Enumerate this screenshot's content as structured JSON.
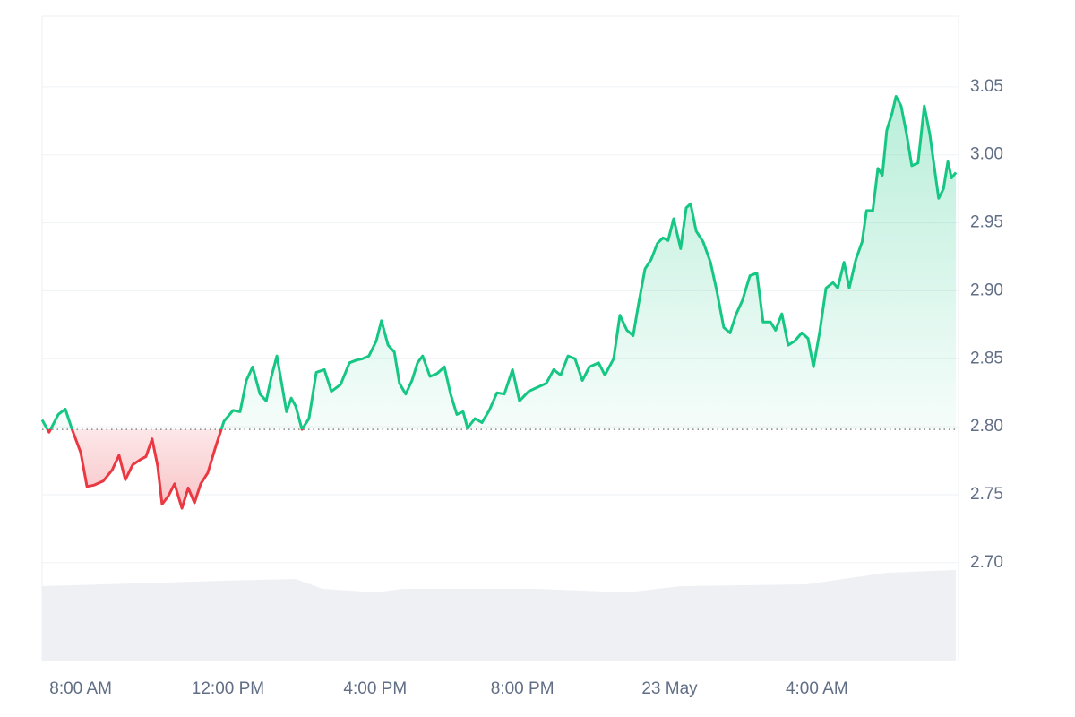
{
  "chart_data": {
    "type": "line",
    "x": [
      6.95,
      7.14,
      7.39,
      7.58,
      7.75,
      8.0,
      8.17,
      8.36,
      8.61,
      8.85,
      9.04,
      9.21,
      9.41,
      9.63,
      9.77,
      9.94,
      10.09,
      10.21,
      10.38,
      10.55,
      10.75,
      10.92,
      11.09,
      11.26,
      11.45,
      11.65,
      11.89,
      12.14,
      12.33,
      12.5,
      12.67,
      12.87,
      13.04,
      13.18,
      13.33,
      13.47,
      13.59,
      13.72,
      13.84,
      14.01,
      14.2,
      14.4,
      14.62,
      14.81,
      15.06,
      15.3,
      15.49,
      15.66,
      15.83,
      16.03,
      16.17,
      16.35,
      16.52,
      16.66,
      16.83,
      17.0,
      17.15,
      17.29,
      17.49,
      17.68,
      17.88,
      18.05,
      18.22,
      18.39,
      18.51,
      18.71,
      18.9,
      19.1,
      19.31,
      19.51,
      19.73,
      19.92,
      20.17,
      20.41,
      20.65,
      20.85,
      21.04,
      21.24,
      21.43,
      21.63,
      21.82,
      22.07,
      22.24,
      22.48,
      22.65,
      22.84,
      23.01,
      23.16,
      23.33,
      23.5,
      23.67,
      23.82,
      23.96,
      24.11,
      24.3,
      24.45,
      24.57,
      24.72,
      24.91,
      25.11,
      25.28,
      25.47,
      25.64,
      25.81,
      25.98,
      26.18,
      26.37,
      26.54,
      26.74,
      26.88,
      27.05,
      27.22,
      27.4,
      27.59,
      27.76,
      27.91,
      28.08,
      28.25,
      28.44,
      28.57,
      28.74,
      28.88,
      29.06,
      29.23,
      29.35,
      29.52,
      29.66,
      29.78,
      29.9,
      30.05,
      30.15,
      30.29,
      30.44,
      30.58,
      30.75,
      30.92,
      31.07,
      31.17,
      31.31,
      31.44,
      31.56,
      31.66,
      31.78
    ],
    "values": [
      2.805,
      2.796,
      2.809,
      2.813,
      2.799,
      2.781,
      2.756,
      2.757,
      2.76,
      2.768,
      2.779,
      2.761,
      2.772,
      2.776,
      2.778,
      2.791,
      2.771,
      2.743,
      2.749,
      2.758,
      2.74,
      2.755,
      2.744,
      2.758,
      2.766,
      2.784,
      2.804,
      2.812,
      2.811,
      2.834,
      2.844,
      2.824,
      2.819,
      2.837,
      2.852,
      2.83,
      2.811,
      2.821,
      2.815,
      2.798,
      2.806,
      2.84,
      2.842,
      2.826,
      2.831,
      2.847,
      2.849,
      2.85,
      2.852,
      2.863,
      2.878,
      2.86,
      2.855,
      2.832,
      2.824,
      2.834,
      2.847,
      2.852,
      2.837,
      2.839,
      2.844,
      2.824,
      2.809,
      2.811,
      2.799,
      2.806,
      2.803,
      2.812,
      2.825,
      2.824,
      2.842,
      2.819,
      2.826,
      2.829,
      2.832,
      2.842,
      2.838,
      2.852,
      2.85,
      2.834,
      2.844,
      2.847,
      2.838,
      2.85,
      2.882,
      2.871,
      2.867,
      2.891,
      2.916,
      2.923,
      2.935,
      2.939,
      2.937,
      2.953,
      2.931,
      2.961,
      2.964,
      2.944,
      2.936,
      2.921,
      2.9,
      2.873,
      2.869,
      2.883,
      2.893,
      2.911,
      2.913,
      2.877,
      2.877,
      2.871,
      2.883,
      2.86,
      2.863,
      2.869,
      2.865,
      2.844,
      2.87,
      2.902,
      2.906,
      2.902,
      2.921,
      2.902,
      2.923,
      2.936,
      2.959,
      2.959,
      2.99,
      2.985,
      3.018,
      3.031,
      3.043,
      3.036,
      3.015,
      2.992,
      2.994,
      3.036,
      3.015,
      2.995,
      2.968,
      2.975,
      2.995,
      2.983,
      2.987
    ],
    "baseline": 2.798,
    "color_up": "#16c784",
    "color_down": "#ea3943",
    "xlim": [
      6.95,
      31.85
    ],
    "xticks": [
      {
        "value": 8,
        "label": "8:00 AM"
      },
      {
        "value": 12,
        "label": "12:00 PM"
      },
      {
        "value": 16,
        "label": "4:00 PM"
      },
      {
        "value": 20,
        "label": "8:00 PM"
      },
      {
        "value": 24,
        "label": "23 May"
      },
      {
        "value": 28,
        "label": "4:00 AM"
      }
    ],
    "ylim": [
      2.628,
      3.102
    ],
    "yticks": [
      {
        "value": 2.7,
        "label": "2.70"
      },
      2.75,
      {
        "value": 2.8,
        "label": "2.80"
      },
      2.85,
      {
        "value": 2.9,
        "label": "2.90"
      },
      2.95,
      {
        "value": 3.0,
        "label": "3.00"
      },
      3.05
    ],
    "grid": true
  }
}
